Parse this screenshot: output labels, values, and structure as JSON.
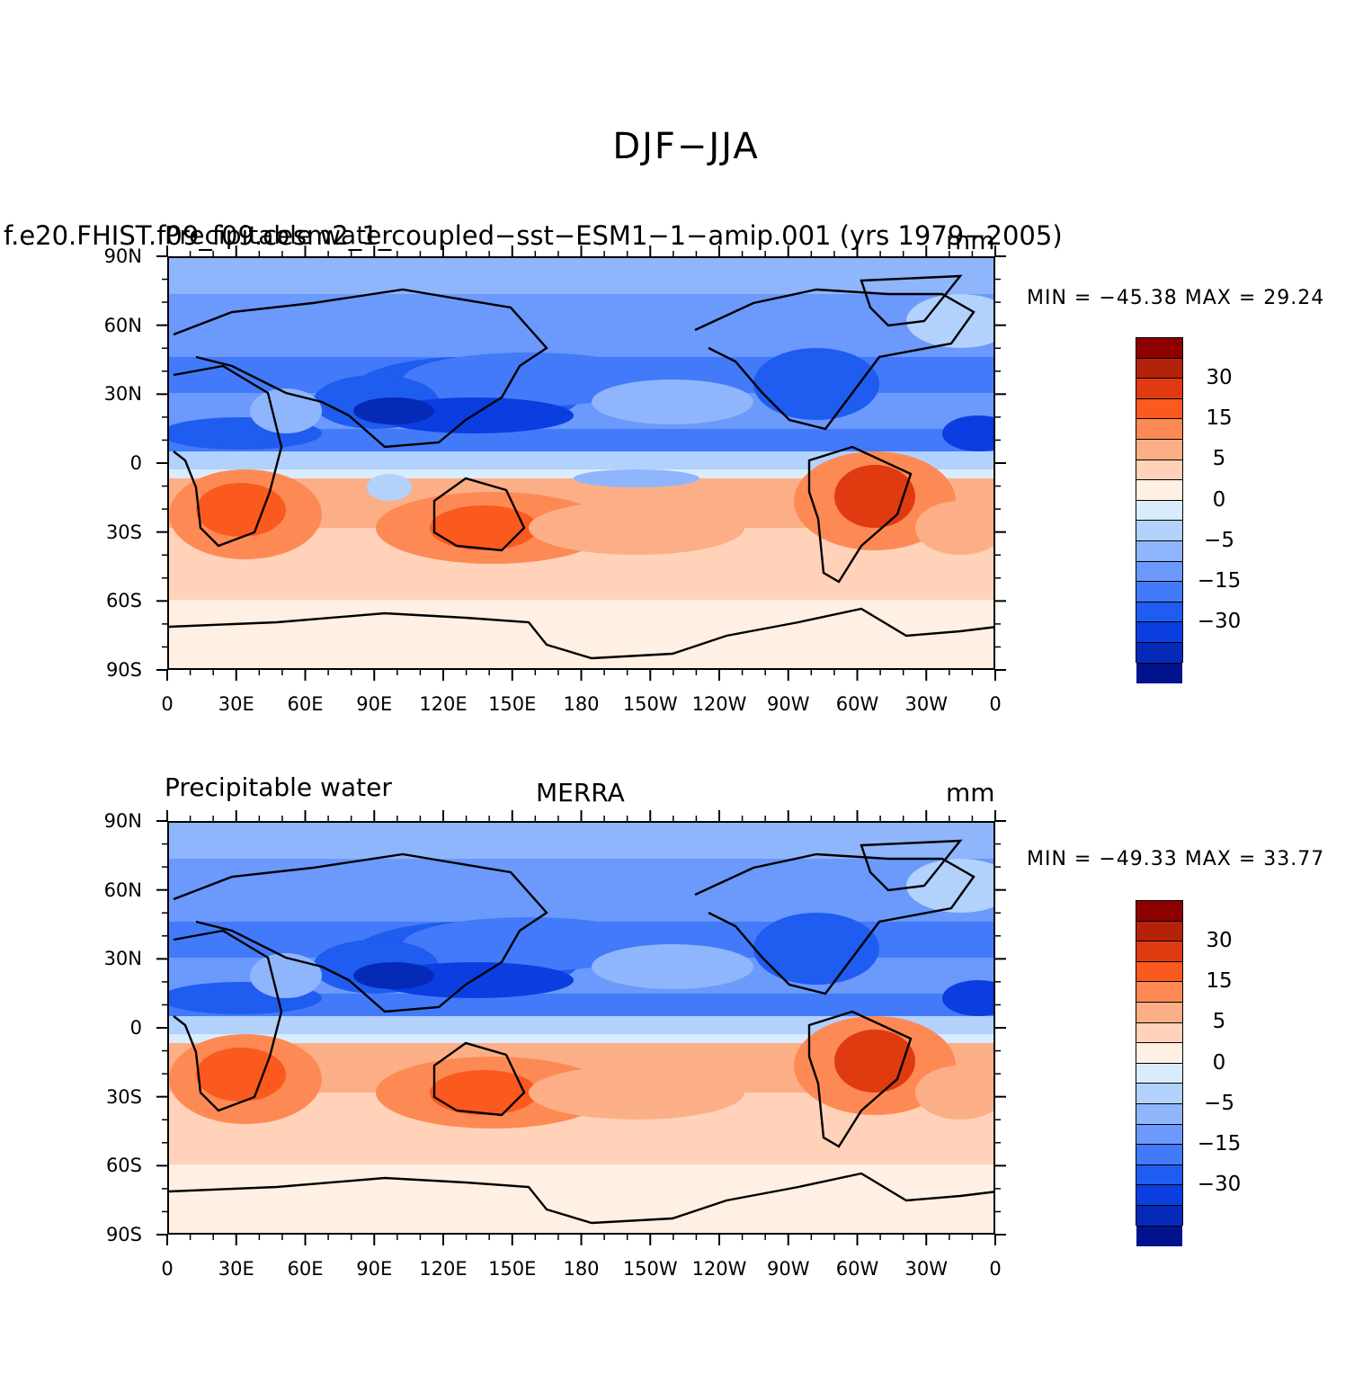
{
  "figure": {
    "title": "DJF−JJA",
    "colorbar": {
      "colors": [
        "#8c0000",
        "#b5220a",
        "#e03a10",
        "#fa5a1e",
        "#fd8a55",
        "#fcaf86",
        "#ffd2b9",
        "#fff0e3",
        "#d9ecfe",
        "#b3d1fd",
        "#8fb5fc",
        "#6b99fc",
        "#427af9",
        "#1f5cf0",
        "#0a3ee0",
        "#062ab8",
        "#00138c"
      ],
      "labels": [
        "30",
        "15",
        "5",
        "0",
        "−5",
        "−15",
        "−30"
      ]
    }
  },
  "axes": {
    "lat_labels": [
      "90N",
      "60N",
      "30N",
      "0",
      "30S",
      "60S",
      "90S"
    ],
    "lon_labels": [
      "0",
      "30E",
      "60E",
      "90E",
      "120E",
      "150E",
      "180",
      "150W",
      "120W",
      "90W",
      "60W",
      "30W",
      "0"
    ]
  },
  "panels": [
    {
      "case_name": "f.e20.FHIST.f09_f09.cesm2_1_coupled−sst−ESM1−1−amip.001 (yrs 1979−2005)",
      "left_title": "Precipitable water",
      "center_title": "",
      "units": "mm",
      "min_max": "MIN = −45.38  MAX =   29.24"
    },
    {
      "case_name": "",
      "left_title": "Precipitable water",
      "center_title": "MERRA",
      "units": "mm",
      "min_max": "MIN = −49.33  MAX =   33.77"
    }
  ],
  "chart_data": [
    {
      "type": "heatmap",
      "title": "DJF−JJA",
      "subtitle": "f.e20.FHIST.f09_f09.cesm2_1_coupled−sst−ESM1−1−amip.001 (yrs 1979−2005)",
      "variable": "Precipitable water",
      "units": "mm",
      "x": [
        "0",
        "30E",
        "60E",
        "90E",
        "120E",
        "150E",
        "180",
        "150W",
        "120W",
        "90W",
        "60W",
        "30W",
        "0"
      ],
      "y": [
        "90N",
        "60N",
        "30N",
        "0",
        "30S",
        "60S",
        "90S"
      ],
      "xlim": [
        0,
        360
      ],
      "ylim": [
        -90,
        90
      ],
      "min": -45.38,
      "max": 29.24,
      "colorbar_levels": [
        30,
        15,
        5,
        0,
        -5,
        -15,
        -30
      ]
    },
    {
      "type": "heatmap",
      "title": "DJF−JJA",
      "subtitle": "MERRA",
      "variable": "Precipitable water",
      "units": "mm",
      "x": [
        "0",
        "30E",
        "60E",
        "90E",
        "120E",
        "150E",
        "180",
        "150W",
        "120W",
        "90W",
        "60W",
        "30W",
        "0"
      ],
      "y": [
        "90N",
        "60N",
        "30N",
        "0",
        "30S",
        "60S",
        "90S"
      ],
      "xlim": [
        0,
        360
      ],
      "ylim": [
        -90,
        90
      ],
      "min": -49.33,
      "max": 33.77,
      "colorbar_levels": [
        30,
        15,
        5,
        0,
        -5,
        -15,
        -30
      ]
    }
  ]
}
